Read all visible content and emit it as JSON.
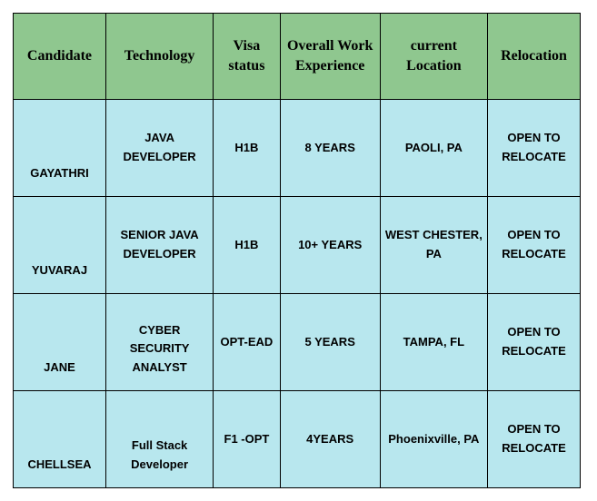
{
  "table": {
    "header_bg": "#8fc78f",
    "row_bg": "#b8e7ee",
    "border_color": "#000000",
    "header_text_color": "#000000",
    "cell_text_color": "#000000",
    "columns": [
      "Candidate",
      "Technology",
      "Visa status",
      "Overall Work Experience",
      "current Location",
      "Relocation"
    ],
    "rows": [
      {
        "candidate": "GAYATHRI",
        "technology": "JAVA DEVELOPER",
        "visa": "H1B",
        "experience": "8 YEARS",
        "location": "PAOLI, PA",
        "relocation": "OPEN TO RELOCATE"
      },
      {
        "candidate": "YUVARAJ",
        "technology": "SENIOR JAVA DEVELOPER",
        "visa": "H1B",
        "experience": "10+ YEARS",
        "location": "WEST CHESTER, PA",
        "relocation": "OPEN TO RELOCATE"
      },
      {
        "candidate": "JANE",
        "technology": "CYBER SECURITY ANALYST",
        "visa": "OPT-EAD",
        "experience": "5 YEARS",
        "location": "TAMPA, FL",
        "relocation": "OPEN TO RELOCATE"
      },
      {
        "candidate": "CHELLSEA",
        "technology": "Full Stack Developer",
        "visa": "F1 -OPT",
        "experience": "4YEARS",
        "location": "Phoenixville, PA",
        "relocation": "OPEN TO RELOCATE"
      }
    ]
  }
}
